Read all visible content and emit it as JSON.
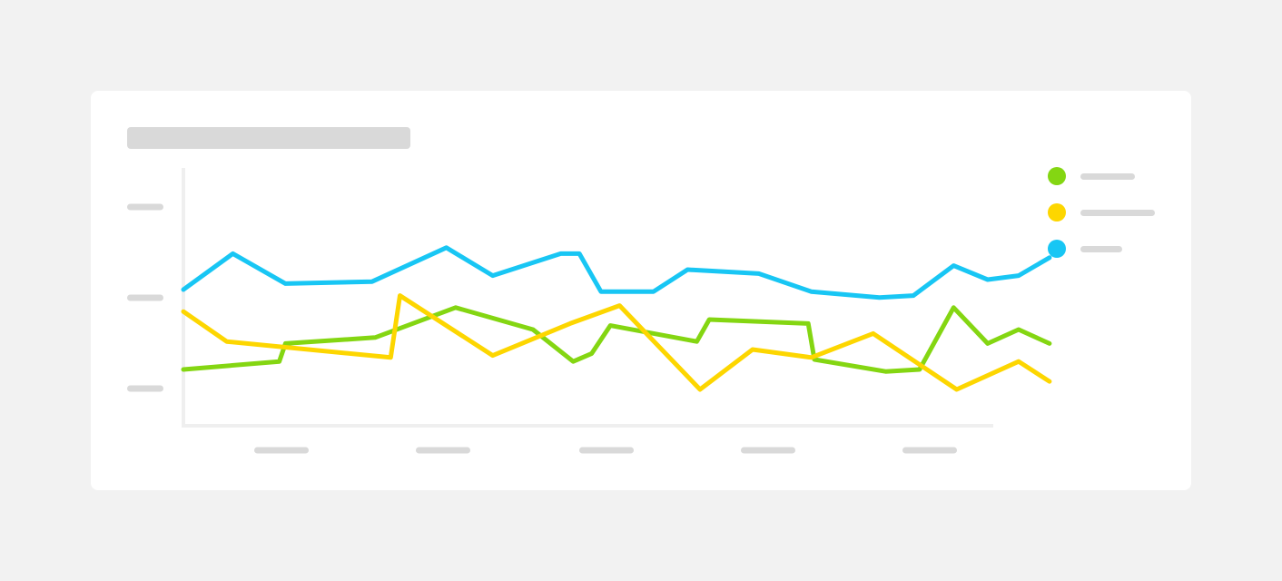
{
  "colors": {
    "background": "#f2f2f2",
    "card": "#ffffff",
    "skeleton": "#d9d9d9",
    "axis": "#efefef"
  },
  "chart_data": {
    "type": "line",
    "title": "",
    "xlabel": "",
    "ylabel": "",
    "grid": false,
    "legend_position": "right",
    "x": [
      0,
      1,
      2,
      3,
      4,
      5,
      6,
      7,
      8,
      9,
      10,
      11,
      12,
      13,
      14,
      15,
      16,
      17,
      18,
      19,
      20,
      21,
      22,
      23,
      24,
      25,
      26,
      27,
      28,
      29
    ],
    "xlim": [
      0,
      29
    ],
    "ylim": [
      0,
      100
    ],
    "series": [
      {
        "color": "#84d612",
        "x": [
          0,
          3.1,
          3.3,
          6.2,
          8.8,
          11.3,
          12.6,
          13.2,
          13.8,
          16.6,
          17.0,
          20.2,
          20.4,
          22.7,
          23.8,
          24.9,
          26.0,
          27.0,
          28.0
        ],
        "values": [
          15,
          19,
          28,
          31,
          46,
          35,
          19,
          23,
          37,
          29,
          40,
          38,
          20,
          14,
          15,
          46,
          28,
          35,
          28
        ]
      },
      {
        "color": "#fdd600",
        "x": [
          0,
          1.4,
          6.7,
          7.0,
          10.0,
          12.5,
          14.1,
          16.7,
          18.4,
          20.3,
          22.3,
          25.0,
          27.0,
          28.0
        ],
        "values": [
          44,
          29,
          21,
          52,
          22,
          38,
          47,
          5,
          25,
          21,
          33,
          5,
          19,
          9
        ]
      },
      {
        "color": "#18c6f4",
        "x": [
          0,
          1.6,
          3.3,
          6.1,
          8.5,
          10.0,
          12.2,
          12.8,
          13.5,
          15.2,
          16.3,
          18.6,
          20.3,
          22.5,
          23.6,
          24.9,
          26.0,
          27.0,
          28.0
        ],
        "values": [
          55,
          73,
          58,
          59,
          76,
          62,
          73,
          73,
          54,
          54,
          65,
          63,
          54,
          51,
          52,
          67,
          60,
          62,
          71
        ]
      }
    ]
  }
}
